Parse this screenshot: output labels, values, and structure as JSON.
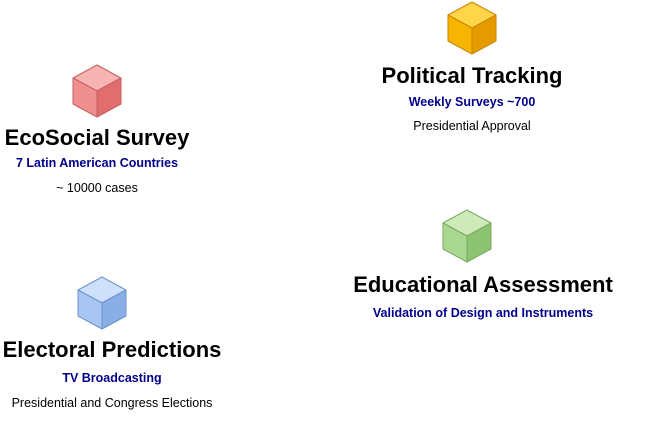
{
  "cards": [
    {
      "title": "Political Tracking",
      "subtitle": "Weekly Surveys ~700",
      "detail": "Presidential Approval",
      "cube_colors": {
        "top": "#ffd54a",
        "left": "#f7b500",
        "right": "#e59a00",
        "stroke": "#c98600"
      }
    },
    {
      "title": "EcoSocial Survey",
      "subtitle": "7 Latin American Countries",
      "detail": "~ 10000 cases",
      "cube_colors": {
        "top": "#f8b4b4",
        "left": "#ef8f8f",
        "right": "#e06e6e",
        "stroke": "#c75f5f"
      }
    },
    {
      "title": "Educational Assessment",
      "subtitle": "Validation of Design and Instruments",
      "detail": "",
      "cube_colors": {
        "top": "#cdeab8",
        "left": "#a9d890",
        "right": "#8cc472",
        "stroke": "#7aaa62"
      }
    },
    {
      "title": "Electoral Predictions",
      "subtitle": "TV Broadcasting",
      "detail": "Presidential and Congress Elections",
      "cube_colors": {
        "top": "#cfe0fb",
        "left": "#a9c6f3",
        "right": "#8aaee6",
        "stroke": "#6e93c9"
      }
    }
  ]
}
